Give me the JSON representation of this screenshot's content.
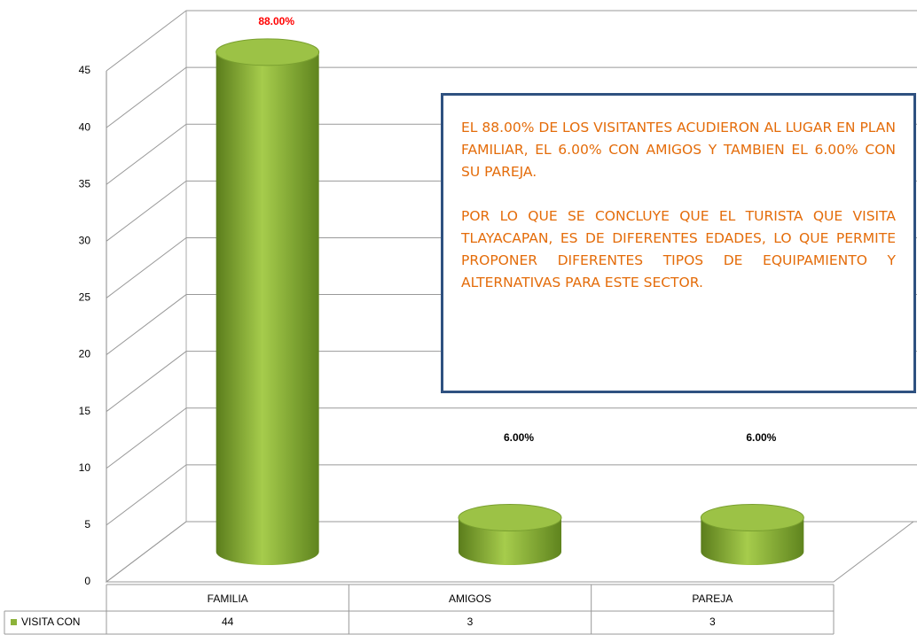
{
  "chart_data": {
    "type": "bar3d",
    "categories": [
      "FAMILIA",
      "AMIGOS",
      "PAREJA"
    ],
    "series": [
      {
        "name": "VISITA CON",
        "color": "#8db33a",
        "values": [
          44,
          3,
          3
        ]
      }
    ],
    "percent_labels": [
      "88.00%",
      "6.00%",
      "6.00%"
    ],
    "percent_label_colors": [
      "#ff0000",
      "#000000",
      "#000000"
    ],
    "ylim": [
      0,
      45
    ],
    "yticks": [
      0,
      5,
      10,
      15,
      20,
      25,
      30,
      35,
      40,
      45
    ],
    "grid": true,
    "annotation": {
      "paragraphs": [
        "EL 88.00% DE LOS VISITANTES ACUDIERON AL LUGAR EN PLAN FAMILIAR, EL 6.00% CON AMIGOS Y TAMBIEN EL 6.00% CON SU PAREJA.",
        "POR LO QUE SE CONCLUYE QUE EL TURISTA QUE VISITA TLAYACAPAN, ES DE DIFERENTES EDADES, LO QUE PERMITE PROPONER DIFERENTES TIPOS DE EQUIPAMIENTO Y ALTERNATIVAS PARA ESTE SECTOR."
      ]
    }
  }
}
